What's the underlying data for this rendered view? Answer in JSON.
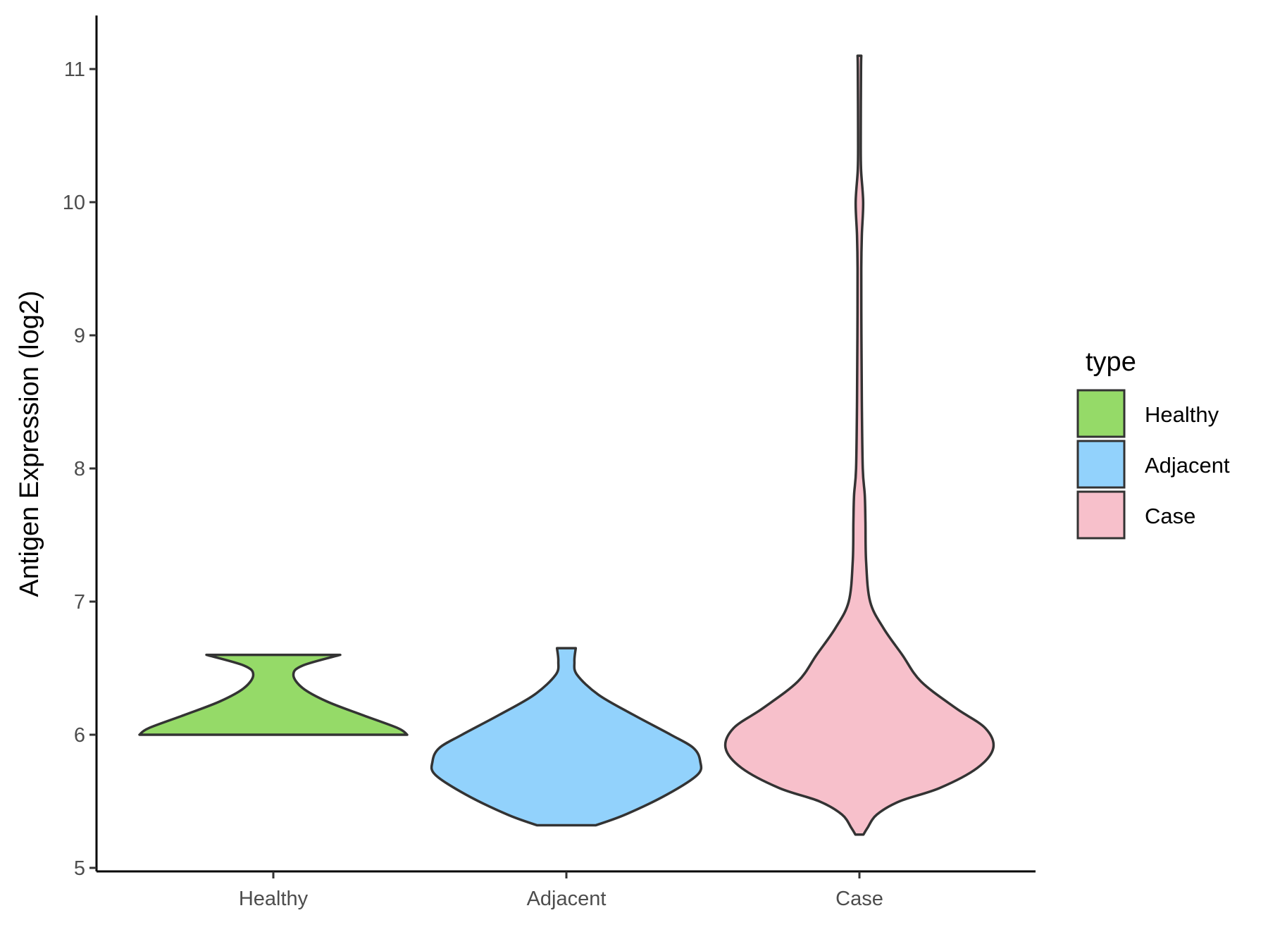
{
  "chart_data": {
    "type": "violin",
    "xlabel": "",
    "ylabel": "Antigen Expression (log2)",
    "ylim": [
      4.97,
      11.4
    ],
    "yticks": [
      5,
      6,
      7,
      8,
      9,
      10,
      11
    ],
    "categories": [
      "Healthy",
      "Adjacent",
      "Case"
    ],
    "grid": false,
    "legend": {
      "title": "type",
      "position": "right",
      "entries": [
        {
          "label": "Healthy",
          "color": "#95DA68"
        },
        {
          "label": "Adjacent",
          "color": "#92D2FC"
        },
        {
          "label": "Case",
          "color": "#F7C0CB"
        }
      ]
    },
    "series": [
      {
        "name": "Healthy",
        "color": "#95DA68",
        "min": 6.0,
        "max": 6.6,
        "density": [
          [
            6.0,
            1.0
          ],
          [
            6.05,
            0.93
          ],
          [
            6.15,
            0.66
          ],
          [
            6.25,
            0.4
          ],
          [
            6.35,
            0.22
          ],
          [
            6.45,
            0.15
          ],
          [
            6.52,
            0.22
          ],
          [
            6.6,
            0.5
          ]
        ]
      },
      {
        "name": "Adjacent",
        "color": "#92D2FC",
        "min": 5.32,
        "max": 6.65,
        "density": [
          [
            5.32,
            0.22
          ],
          [
            5.4,
            0.44
          ],
          [
            5.55,
            0.75
          ],
          [
            5.7,
            0.98
          ],
          [
            5.8,
            1.0
          ],
          [
            5.9,
            0.95
          ],
          [
            6.0,
            0.78
          ],
          [
            6.15,
            0.5
          ],
          [
            6.3,
            0.24
          ],
          [
            6.45,
            0.08
          ],
          [
            6.55,
            0.06
          ],
          [
            6.65,
            0.07
          ]
        ]
      },
      {
        "name": "Case",
        "color": "#F7C0CB",
        "min": 5.25,
        "max": 11.1,
        "density": [
          [
            5.25,
            0.03
          ],
          [
            5.3,
            0.06
          ],
          [
            5.4,
            0.13
          ],
          [
            5.5,
            0.3
          ],
          [
            5.6,
            0.6
          ],
          [
            5.75,
            0.88
          ],
          [
            5.9,
            1.0
          ],
          [
            6.05,
            0.94
          ],
          [
            6.2,
            0.72
          ],
          [
            6.4,
            0.46
          ],
          [
            6.6,
            0.32
          ],
          [
            6.8,
            0.18
          ],
          [
            7.0,
            0.08
          ],
          [
            7.3,
            0.05
          ],
          [
            7.6,
            0.045
          ],
          [
            7.8,
            0.04
          ],
          [
            8.0,
            0.025
          ],
          [
            8.5,
            0.018
          ],
          [
            9.0,
            0.015
          ],
          [
            9.5,
            0.014
          ],
          [
            9.75,
            0.018
          ],
          [
            10.0,
            0.028
          ],
          [
            10.25,
            0.012
          ],
          [
            10.5,
            0.01
          ],
          [
            11.0,
            0.012
          ],
          [
            11.1,
            0.014
          ]
        ]
      }
    ]
  }
}
